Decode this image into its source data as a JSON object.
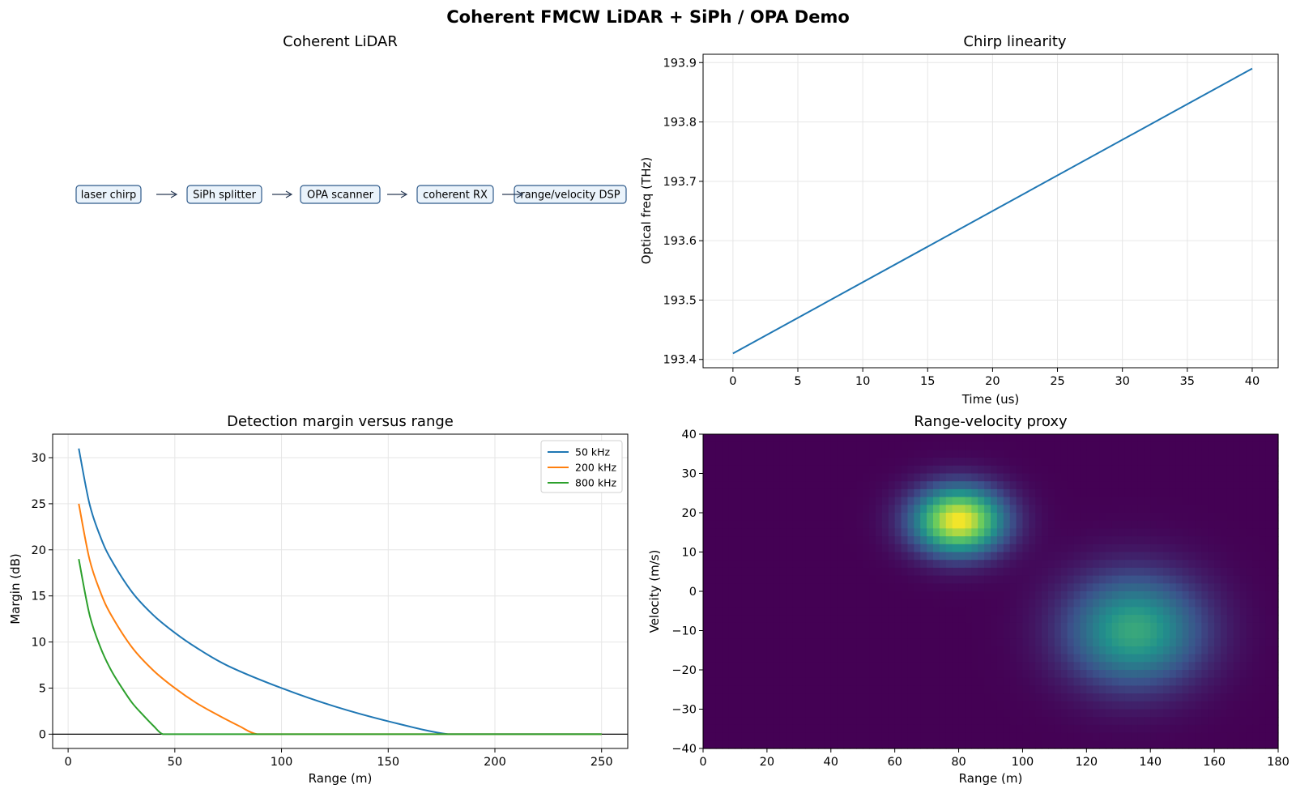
{
  "suptitle": "Coherent FMCW LiDAR + SiPh / OPA Demo",
  "diagram": {
    "title": "Coherent LiDAR",
    "nodes": [
      "laser chirp",
      "SiPh splitter",
      "OPA scanner",
      "coherent RX",
      "range/velocity DSP"
    ],
    "colors": {
      "box_fill": "#eaf3fb",
      "box_stroke": "#2f5a8a",
      "arrow": "#2a3b55"
    }
  },
  "chart_data": [
    {
      "type": "line",
      "title": "Chirp linearity",
      "xlabel": "Time (us)",
      "ylabel": "Optical freq (THz)",
      "xlim": [
        -2.3,
        42
      ],
      "ylim": [
        193.386,
        193.914
      ],
      "xticks": [
        0,
        5,
        10,
        15,
        20,
        25,
        30,
        35,
        40
      ],
      "yticks": [
        193.4,
        193.5,
        193.6,
        193.7,
        193.8,
        193.9
      ],
      "grid": true,
      "series": [
        {
          "color": "#1f77b4",
          "x": [
            0,
            40
          ],
          "y": [
            193.41,
            193.89
          ]
        }
      ]
    },
    {
      "type": "line",
      "title": "Detection margin versus range",
      "xlabel": "Range (m)",
      "ylabel": "Margin (dB)",
      "xlim": [
        -7.25,
        262.25
      ],
      "ylim": [
        -1.55,
        32.55
      ],
      "xticks": [
        0,
        50,
        100,
        150,
        200,
        250
      ],
      "yticks": [
        0,
        5,
        10,
        15,
        20,
        25,
        30
      ],
      "grid": true,
      "legend": "top-right",
      "reference_line_y": 0,
      "series": [
        {
          "name": "50 kHz",
          "color": "#1f77b4",
          "x": [
            5,
            10,
            15,
            20,
            30,
            40,
            50,
            60,
            75,
            100,
            125,
            150,
            178,
            200,
            250
          ],
          "y": [
            31.0,
            25.0,
            21.5,
            19.0,
            15.4,
            12.9,
            11.0,
            9.4,
            7.4,
            5.0,
            3.0,
            1.4,
            0.0,
            0.0,
            0.0
          ]
        },
        {
          "name": "200 kHz",
          "color": "#ff7f0e",
          "x": [
            5,
            10,
            15,
            20,
            30,
            40,
            50,
            60,
            70,
            80,
            88.5,
            100,
            150,
            200,
            250
          ],
          "y": [
            25.0,
            19.0,
            15.5,
            13.0,
            9.4,
            6.9,
            5.0,
            3.4,
            2.1,
            0.9,
            0.0,
            0.0,
            0.0,
            0.0,
            0.0
          ]
        },
        {
          "name": "800 kHz",
          "color": "#2ca02c",
          "x": [
            5,
            10,
            15,
            20,
            25,
            30,
            35,
            40,
            44.3,
            50,
            100,
            150,
            200,
            250
          ],
          "y": [
            19.0,
            13.0,
            9.5,
            7.0,
            5.1,
            3.4,
            2.1,
            0.9,
            0.0,
            0.0,
            0.0,
            0.0,
            0.0,
            0.0
          ]
        }
      ]
    },
    {
      "type": "heatmap",
      "title": "Range-velocity proxy",
      "xlabel": "Range (m)",
      "ylabel": "Velocity (m/s)",
      "xlim": [
        0,
        180
      ],
      "ylim": [
        -40,
        40
      ],
      "xticks": [
        0,
        20,
        40,
        60,
        80,
        100,
        120,
        140,
        160,
        180
      ],
      "yticks": [
        -40,
        -30,
        -20,
        -10,
        0,
        10,
        20,
        30,
        40
      ],
      "colormap": "viridis",
      "grid": false,
      "peaks": [
        {
          "range": 80,
          "velocity": 18,
          "amplitude": 1.0,
          "sigma_range": 10,
          "sigma_velocity": 6
        },
        {
          "range": 135,
          "velocity": -10,
          "amplitude": 0.6,
          "sigma_range": 15,
          "sigma_velocity": 10
        }
      ]
    }
  ]
}
